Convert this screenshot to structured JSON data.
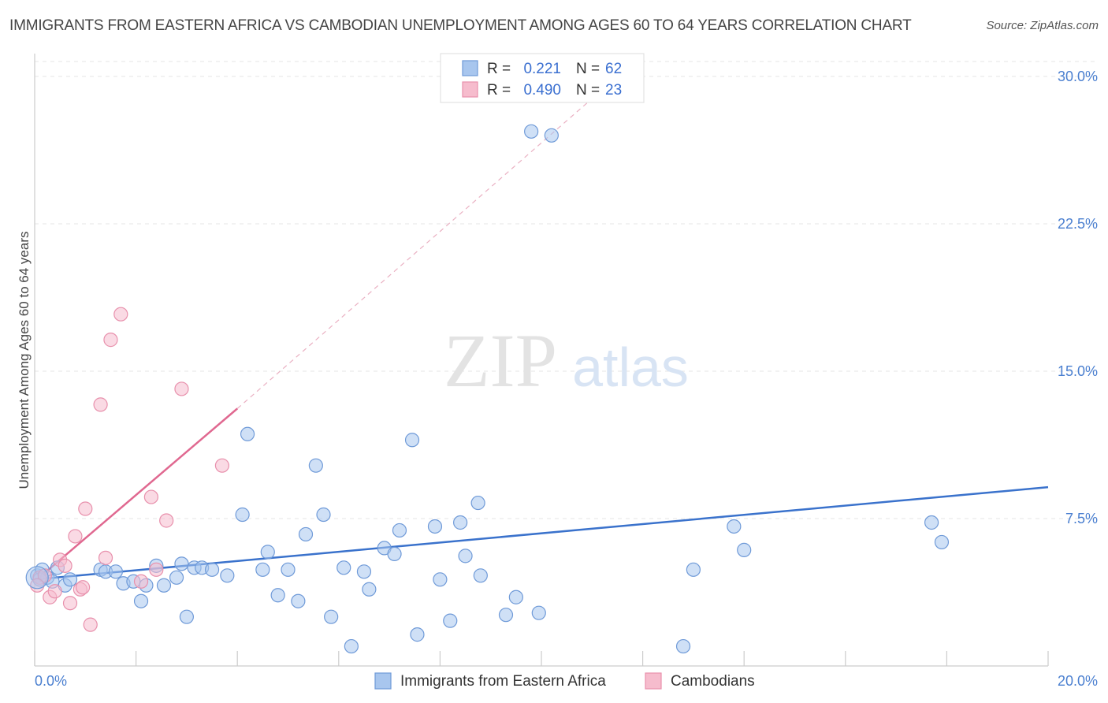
{
  "title": "IMMIGRANTS FROM EASTERN AFRICA VS CAMBODIAN UNEMPLOYMENT AMONG AGES 60 TO 64 YEARS CORRELATION CHART",
  "source": "Source: ZipAtlas.com",
  "watermark": {
    "zip": "ZIP",
    "atlas": "atlas"
  },
  "legend": {
    "rows": [
      {
        "r_label": "R =",
        "r_value": "0.221",
        "n_label": "N =",
        "n_value": "62"
      },
      {
        "r_label": "R =",
        "r_value": "0.490",
        "n_label": "N =",
        "n_value": "23"
      }
    ]
  },
  "chart_data": {
    "type": "scatter",
    "title": "IMMIGRANTS FROM EASTERN AFRICA VS CAMBODIAN UNEMPLOYMENT AMONG AGES 60 TO 64 YEARS CORRELATION CHART",
    "xlabel": "",
    "ylabel": "Unemployment Among Ages 60 to 64 years",
    "xlim": [
      0,
      20
    ],
    "ylim": [
      0,
      30
    ],
    "x_tick_labels": [
      "0.0%",
      "20.0%"
    ],
    "y_ticks": [
      7.5,
      15.0,
      22.5,
      30.0
    ],
    "y_tick_labels": [
      "7.5%",
      "15.0%",
      "22.5%",
      "30.0%"
    ],
    "colors": {
      "blue_fill": "#a8c6ee",
      "blue_stroke": "#6f9ad8",
      "blue_line": "#3a72cc",
      "pink_fill": "#f6bccd",
      "pink_stroke": "#e890ac",
      "pink_line": "#e06890"
    },
    "series": [
      {
        "name": "Immigrants from Eastern Africa",
        "trend": {
          "x0": 0,
          "y0": 4.4,
          "x1": 20,
          "y1": 9.1
        },
        "points": [
          [
            0.05,
            4.6
          ],
          [
            0.15,
            4.9
          ],
          [
            0.25,
            4.5
          ],
          [
            0.35,
            4.3
          ],
          [
            0.45,
            5.0
          ],
          [
            0.6,
            4.1
          ],
          [
            0.7,
            4.4
          ],
          [
            1.3,
            4.9
          ],
          [
            1.4,
            4.8
          ],
          [
            1.6,
            4.8
          ],
          [
            1.75,
            4.2
          ],
          [
            1.95,
            4.3
          ],
          [
            2.1,
            3.3
          ],
          [
            2.2,
            4.1
          ],
          [
            2.4,
            5.1
          ],
          [
            2.55,
            4.1
          ],
          [
            2.8,
            4.5
          ],
          [
            2.9,
            5.2
          ],
          [
            3.0,
            2.5
          ],
          [
            3.15,
            5.0
          ],
          [
            3.3,
            5.0
          ],
          [
            3.5,
            4.9
          ],
          [
            3.8,
            4.6
          ],
          [
            4.1,
            7.7
          ],
          [
            4.2,
            11.8
          ],
          [
            4.5,
            4.9
          ],
          [
            4.6,
            5.8
          ],
          [
            4.8,
            3.6
          ],
          [
            5.0,
            4.9
          ],
          [
            5.2,
            3.3
          ],
          [
            5.35,
            6.7
          ],
          [
            5.55,
            10.2
          ],
          [
            5.7,
            7.7
          ],
          [
            5.85,
            2.5
          ],
          [
            6.1,
            5.0
          ],
          [
            6.25,
            1.0
          ],
          [
            6.5,
            4.8
          ],
          [
            6.6,
            3.9
          ],
          [
            6.9,
            6.0
          ],
          [
            7.1,
            5.7
          ],
          [
            7.2,
            6.9
          ],
          [
            7.45,
            11.5
          ],
          [
            7.55,
            1.6
          ],
          [
            7.9,
            7.1
          ],
          [
            8.0,
            4.4
          ],
          [
            8.2,
            2.3
          ],
          [
            8.4,
            7.3
          ],
          [
            8.5,
            5.6
          ],
          [
            8.75,
            8.3
          ],
          [
            8.8,
            4.6
          ],
          [
            9.3,
            2.6
          ],
          [
            9.5,
            3.5
          ],
          [
            9.8,
            27.2
          ],
          [
            9.95,
            2.7
          ],
          [
            10.2,
            27.0
          ],
          [
            12.8,
            1.0
          ],
          [
            13.0,
            4.9
          ],
          [
            13.8,
            7.1
          ],
          [
            14.0,
            5.9
          ],
          [
            17.7,
            7.3
          ],
          [
            17.9,
            6.3
          ],
          [
            0.1,
            4.4
          ]
        ]
      },
      {
        "name": "Cambodians",
        "trend": {
          "x0": 0,
          "y0": 4.3,
          "x1": 4.0,
          "y1": 13.1
        },
        "trend_ext": {
          "x0": 4.0,
          "y0": 13.1,
          "x1": 11.5,
          "y1": 30.0
        },
        "points": [
          [
            0.1,
            4.5
          ],
          [
            0.2,
            4.6
          ],
          [
            0.3,
            3.5
          ],
          [
            0.4,
            3.8
          ],
          [
            0.5,
            5.4
          ],
          [
            0.6,
            5.1
          ],
          [
            0.7,
            3.2
          ],
          [
            0.8,
            6.6
          ],
          [
            0.9,
            3.9
          ],
          [
            0.95,
            4.0
          ],
          [
            1.0,
            8.0
          ],
          [
            1.1,
            2.1
          ],
          [
            1.3,
            13.3
          ],
          [
            1.4,
            5.5
          ],
          [
            1.5,
            16.6
          ],
          [
            1.7,
            17.9
          ],
          [
            2.1,
            4.3
          ],
          [
            2.3,
            8.6
          ],
          [
            2.4,
            4.9
          ],
          [
            2.6,
            7.4
          ],
          [
            2.9,
            14.1
          ],
          [
            3.7,
            10.2
          ],
          [
            0.05,
            4.1
          ]
        ]
      }
    ]
  },
  "bottom_legend": {
    "items": [
      {
        "label": "Immigrants from Eastern Africa"
      },
      {
        "label": "Cambodians"
      }
    ]
  }
}
